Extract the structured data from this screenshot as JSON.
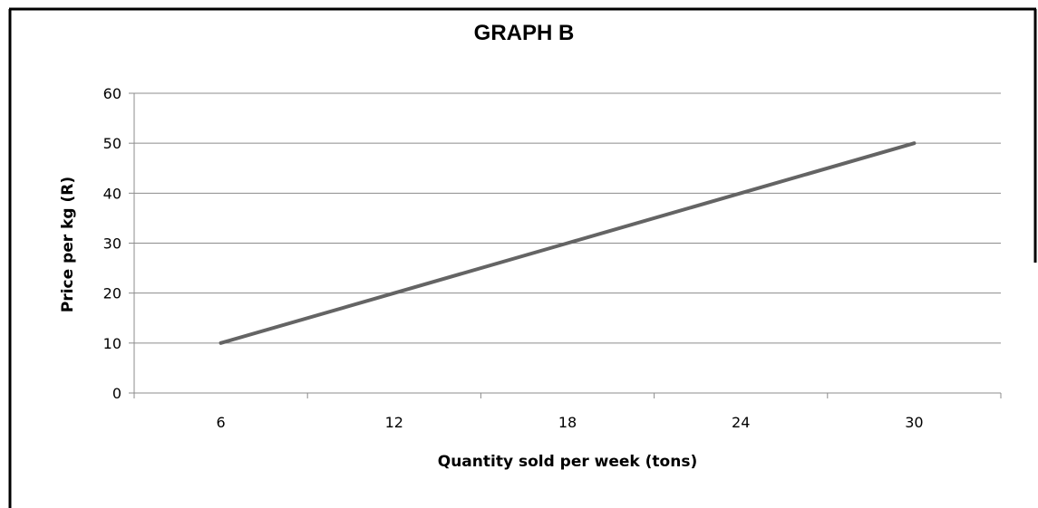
{
  "chart_data": {
    "type": "line",
    "title": "GRAPH B",
    "xlabel": "Quantity sold per week (tons)",
    "ylabel": "Price per kg (R)",
    "categories": [
      "6",
      "12",
      "18",
      "24",
      "30"
    ],
    "series": [
      {
        "values": [
          10,
          20,
          30,
          40,
          50
        ]
      }
    ],
    "ylim": [
      0,
      60
    ],
    "yticks": [
      "0",
      "10",
      "20",
      "30",
      "40",
      "50",
      "60"
    ],
    "grid": true,
    "legend": "none",
    "colors": {
      "line": "#646464",
      "grid": "#8c8c8c",
      "frame": "#000000"
    }
  }
}
